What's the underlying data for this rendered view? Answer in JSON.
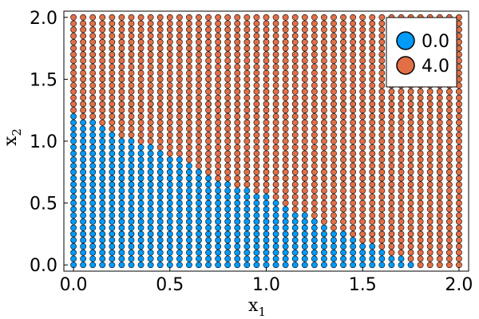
{
  "chart_data": {
    "type": "scatter",
    "title": "",
    "xlabel": "x",
    "xlabel_sub": "1",
    "ylabel": "x",
    "ylabel_sub": "2",
    "xlim": [
      -0.05,
      2.05
    ],
    "ylim": [
      -0.05,
      2.05
    ],
    "xticks": [
      0.0,
      0.5,
      1.0,
      1.5,
      2.0
    ],
    "yticks": [
      0.0,
      0.5,
      1.0,
      1.5,
      2.0
    ],
    "xtick_labels": [
      "0.0",
      "0.5",
      "1.0",
      "1.5",
      "2.0"
    ],
    "ytick_labels": [
      "0.0",
      "0.5",
      "1.0",
      "1.5",
      "2.0"
    ],
    "grid": false,
    "legend_position": "top-right",
    "grid_x": {
      "start": 0.0,
      "stop": 2.0,
      "count": 41
    },
    "grid_y": {
      "start": 0.0,
      "stop": 2.0,
      "count": 41
    },
    "series": [
      {
        "name": "0.0",
        "color": "#009af9"
      },
      {
        "name": "4.0",
        "color": "#e26f46"
      }
    ],
    "class_boundary": {
      "x": [
        0.0,
        0.1,
        0.2,
        0.3,
        0.4,
        0.5,
        0.6,
        0.7,
        0.8,
        0.9,
        1.0,
        1.1,
        1.2,
        1.3,
        1.4,
        1.5,
        1.6,
        1.7,
        1.75
      ],
      "y": [
        1.2,
        1.15,
        1.05,
        1.0,
        0.95,
        0.88,
        0.82,
        0.73,
        0.65,
        0.6,
        0.55,
        0.47,
        0.42,
        0.33,
        0.25,
        0.18,
        0.13,
        0.05,
        0.0
      ]
    }
  }
}
